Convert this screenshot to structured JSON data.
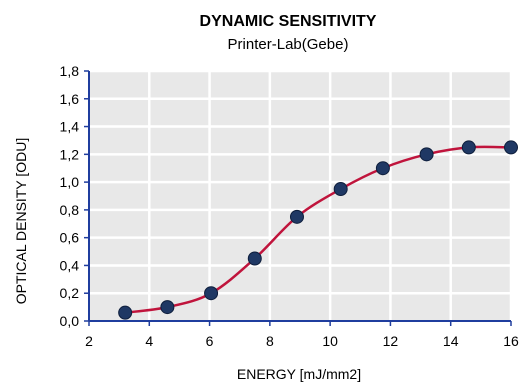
{
  "chart_data": {
    "type": "line",
    "title": "DYNAMIC SENSITIVITY",
    "subtitle": "Printer-Lab(Gebe)",
    "xlabel": "ENERGY [mJ/mm2]",
    "ylabel": "OPTICAL DENSITY [ODU]",
    "xlim": [
      2,
      16
    ],
    "ylim": [
      0,
      1.8
    ],
    "x_ticks": [
      "2",
      "4",
      "6",
      "8",
      "10",
      "12",
      "14",
      "16"
    ],
    "y_ticks": [
      "0,0",
      "0,2",
      "0,4",
      "0,6",
      "0,8",
      "1,0",
      "1,2",
      "1,4",
      "1,6",
      "1,8"
    ],
    "grid": true,
    "smooth": true,
    "series": [
      {
        "x": [
          3.2,
          4.6,
          6.05,
          7.5,
          8.9,
          10.35,
          11.75,
          13.2,
          14.6,
          16.0
        ],
        "y": [
          0.06,
          0.1,
          0.2,
          0.45,
          0.75,
          0.95,
          1.1,
          1.2,
          1.25,
          1.25
        ],
        "line_color": "#c0143c",
        "marker_color": "#1f3864"
      }
    ],
    "plot_background": "#e8e8e8",
    "grid_color": "#ffffff",
    "axis_color": "#1f3d9e"
  }
}
